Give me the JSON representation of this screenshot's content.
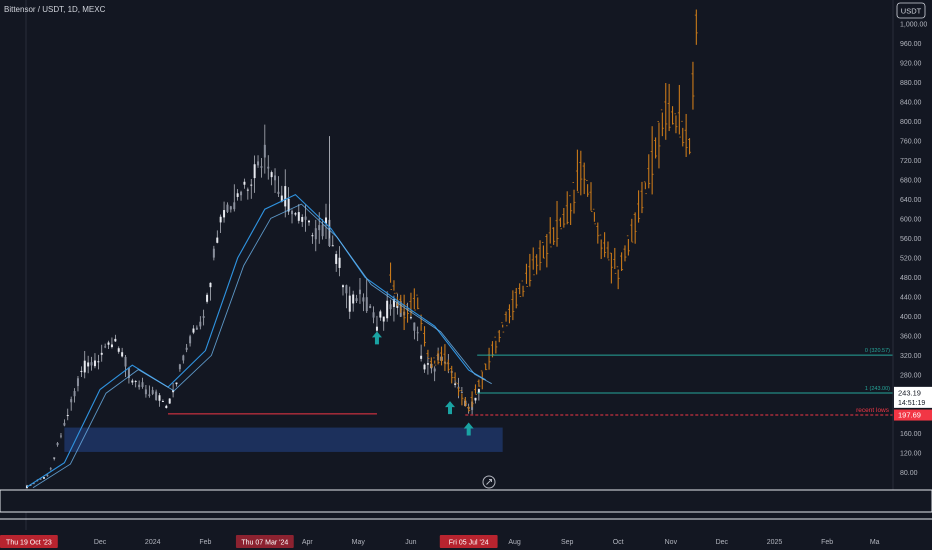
{
  "header": {
    "symbol_line": "Bittensor / USDT, 1D, MEXC",
    "currency_button": "USDT"
  },
  "chart_data": {
    "type": "candlestick",
    "title": "Bittensor / USDT, 1D, MEXC",
    "y_axis": {
      "ticks": [
        80,
        120,
        160,
        200,
        240,
        280,
        320,
        360,
        400,
        440,
        480,
        520,
        560,
        600,
        640,
        680,
        720,
        760,
        800,
        840,
        880,
        920,
        960,
        1000
      ],
      "tick_labels": [
        "80.00",
        "120.00",
        "160.00",
        "200.00",
        "240.00",
        "280.00",
        "320.00",
        "360.00",
        "400.00",
        "440.00",
        "480.00",
        "520.00",
        "560.00",
        "600.00",
        "640.00",
        "680.00",
        "720.00",
        "760.00",
        "800.00",
        "840.00",
        "880.00",
        "920.00",
        "960.00",
        "1,000.00"
      ],
      "range": [
        48,
        1000
      ]
    },
    "x_axis": {
      "range": [
        "2023-10-19",
        "2025-03-10"
      ],
      "ticks": [
        {
          "date": "2023-12-01",
          "label": "Dec"
        },
        {
          "date": "2024-01-01",
          "label": "2024"
        },
        {
          "date": "2024-02-01",
          "label": "Feb"
        },
        {
          "date": "2024-04-01",
          "label": "Apr"
        },
        {
          "date": "2024-05-01",
          "label": "May"
        },
        {
          "date": "2024-06-01",
          "label": "Jun"
        },
        {
          "date": "2024-08-01",
          "label": "Aug"
        },
        {
          "date": "2024-09-01",
          "label": "Sep"
        },
        {
          "date": "2024-10-01",
          "label": "Oct"
        },
        {
          "date": "2024-11-01",
          "label": "Nov"
        },
        {
          "date": "2024-12-01",
          "label": "Dec"
        },
        {
          "date": "2025-01-01",
          "label": "2025"
        },
        {
          "date": "2025-02-01",
          "label": "Feb"
        },
        {
          "date": "2025-03-01",
          "label": "Ma"
        }
      ],
      "highlighted": [
        {
          "date": "2023-10-19",
          "label": "Thu 19 Oct '23"
        },
        {
          "date": "2024-03-07",
          "label": "Thu 07 Mar '24"
        },
        {
          "date": "2024-07-05",
          "label": "Fri 05 Jul '24"
        }
      ]
    },
    "price_series": [
      {
        "date": "2023-10-19",
        "value": 50
      },
      {
        "date": "2023-11-01",
        "value": 75
      },
      {
        "date": "2023-11-10",
        "value": 180
      },
      {
        "date": "2023-11-20",
        "value": 290
      },
      {
        "date": "2023-12-01",
        "value": 320
      },
      {
        "date": "2023-12-10",
        "value": 350
      },
      {
        "date": "2023-12-20",
        "value": 265
      },
      {
        "date": "2024-01-01",
        "value": 245
      },
      {
        "date": "2024-01-10",
        "value": 215
      },
      {
        "date": "2024-01-20",
        "value": 330
      },
      {
        "date": "2024-02-01",
        "value": 420
      },
      {
        "date": "2024-02-10",
        "value": 610
      },
      {
        "date": "2024-02-20",
        "value": 650
      },
      {
        "date": "2024-03-01",
        "value": 700
      },
      {
        "date": "2024-03-07",
        "value": 740
      },
      {
        "date": "2024-03-15",
        "value": 660
      },
      {
        "date": "2024-03-25",
        "value": 610
      },
      {
        "date": "2024-04-01",
        "value": 585
      },
      {
        "date": "2024-04-15",
        "value": 570
      },
      {
        "date": "2024-04-25",
        "value": 430
      },
      {
        "date": "2024-05-05",
        "value": 445
      },
      {
        "date": "2024-05-12",
        "value": 380
      },
      {
        "date": "2024-05-20",
        "value": 425
      },
      {
        "date": "2024-06-01",
        "value": 405
      },
      {
        "date": "2024-06-10",
        "value": 290
      },
      {
        "date": "2024-06-20",
        "value": 315
      },
      {
        "date": "2024-07-01",
        "value": 240
      },
      {
        "date": "2024-07-05",
        "value": 205
      },
      {
        "date": "2024-07-12",
        "value": 250
      }
    ],
    "projection_series": [
      {
        "date": "2024-05-20",
        "value": 470
      },
      {
        "date": "2024-05-28",
        "value": 410
      },
      {
        "date": "2024-06-05",
        "value": 430
      },
      {
        "date": "2024-06-12",
        "value": 300
      },
      {
        "date": "2024-06-20",
        "value": 320
      },
      {
        "date": "2024-07-01",
        "value": 240
      },
      {
        "date": "2024-07-05",
        "value": 210
      },
      {
        "date": "2024-07-20",
        "value": 340
      },
      {
        "date": "2024-08-01",
        "value": 430
      },
      {
        "date": "2024-08-15",
        "value": 520
      },
      {
        "date": "2024-09-01",
        "value": 610
      },
      {
        "date": "2024-09-10",
        "value": 710
      },
      {
        "date": "2024-09-20",
        "value": 560
      },
      {
        "date": "2024-10-01",
        "value": 490
      },
      {
        "date": "2024-10-10",
        "value": 580
      },
      {
        "date": "2024-10-20",
        "value": 700
      },
      {
        "date": "2024-10-28",
        "value": 820
      },
      {
        "date": "2024-11-05",
        "value": 800
      },
      {
        "date": "2024-11-12",
        "value": 750
      },
      {
        "date": "2024-11-16",
        "value": 1000
      }
    ],
    "moving_average": [
      {
        "date": "2023-10-19",
        "value": 50
      },
      {
        "date": "2023-11-10",
        "value": 100
      },
      {
        "date": "2023-12-01",
        "value": 250
      },
      {
        "date": "2023-12-20",
        "value": 300
      },
      {
        "date": "2024-01-10",
        "value": 255
      },
      {
        "date": "2024-02-01",
        "value": 330
      },
      {
        "date": "2024-02-20",
        "value": 520
      },
      {
        "date": "2024-03-07",
        "value": 620
      },
      {
        "date": "2024-03-25",
        "value": 650
      },
      {
        "date": "2024-04-15",
        "value": 580
      },
      {
        "date": "2024-05-05",
        "value": 480
      },
      {
        "date": "2024-05-25",
        "value": 430
      },
      {
        "date": "2024-06-15",
        "value": 380
      },
      {
        "date": "2024-07-05",
        "value": 290
      },
      {
        "date": "2024-07-15",
        "value": 270
      }
    ],
    "fib_levels": [
      {
        "label": "0 (320.57)",
        "value": 320.57
      },
      {
        "label": "1 (243.00)",
        "value": 243.0
      }
    ],
    "recent_lows": {
      "label": "recent lows",
      "value": 197.69
    },
    "support_line": {
      "value": 200,
      "from": "2024-01-10",
      "to": "2024-05-12"
    },
    "demand_zone": {
      "low": 122,
      "high": 172,
      "from": "2023-11-10",
      "to": "2024-07-25"
    },
    "up_arrows": [
      {
        "date": "2024-05-12",
        "value": 355
      },
      {
        "date": "2024-06-24",
        "value": 212
      },
      {
        "date": "2024-07-05",
        "value": 168
      }
    ],
    "price_labels": {
      "current_price": "243.19",
      "countdown": "14:51:19",
      "recent_low_price": "197.69"
    },
    "colors": {
      "background": "#131722",
      "candles": "#c7cad3",
      "projection": "#c8791a",
      "moving_average": "#2f93e0",
      "fib_line": "#26a69a",
      "recent_lows": "#f23645",
      "demand_zone": "#1f3566",
      "arrows": "#1aa3a3"
    }
  }
}
